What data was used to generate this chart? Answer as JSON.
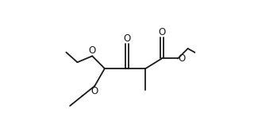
{
  "bg_color": "#ffffff",
  "line_color": "#1a1a1a",
  "line_width": 1.3,
  "font_size": 8.5,
  "figsize": [
    3.2,
    1.72
  ],
  "dpi": 100,
  "xlim": [
    -0.05,
    1.05
  ],
  "ylim": [
    -0.05,
    1.05
  ]
}
